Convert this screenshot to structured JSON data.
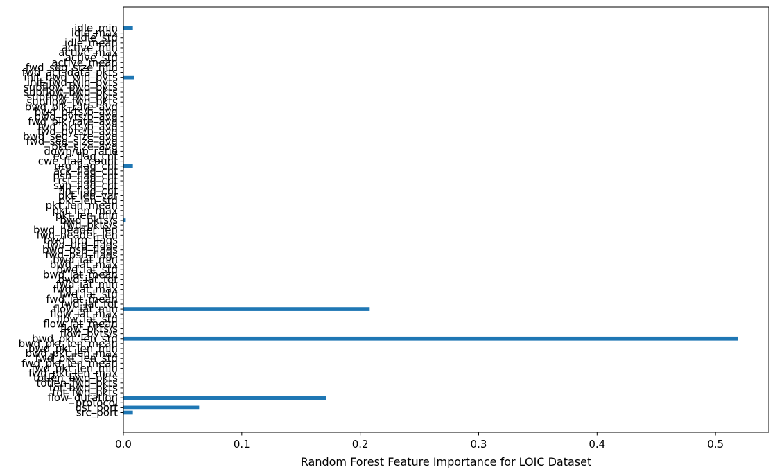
{
  "chart_data": {
    "type": "bar",
    "orientation": "horizontal",
    "xlabel": "Random Forest Feature Importance for LOIC Dataset",
    "ylabel": "",
    "xlim": [
      0,
      0.545
    ],
    "xticks": [
      0.0,
      0.1,
      0.2,
      0.3,
      0.4,
      0.5
    ],
    "xtick_labels": [
      "0.0",
      "0.1",
      "0.2",
      "0.3",
      "0.4",
      "0.5"
    ],
    "grid": false,
    "bar_color": "#1f77b4",
    "categories": [
      "src_port",
      "dst_port",
      "protocol",
      "flow_duration",
      "tot_fwd_pkts",
      "tot_bwd_pkts",
      "totlen_fwd_pkts",
      "totlen_bwd_pkts",
      "fwd_pkt_len_max",
      "fwd_pkt_len_min",
      "fwd_pkt_len_mean",
      "fwd_pkt_len_std",
      "bwd_pkt_len_max",
      "bwd_pkt_len_min",
      "bwd_pkt_len_mean",
      "bwd_pkt_len_std",
      "flow_byts/s",
      "flow_pkts/s",
      "flow_iat_mean",
      "flow_iat_std",
      "flow_iat_max",
      "flow_iat_min",
      "fwd_iat_tot",
      "fwd_iat_mean",
      "fwd_iat_std",
      "fwd_iat_max",
      "fwd_iat_min",
      "bwd_iat_tot",
      "bwd_iat_mean",
      "bwd_iat_std",
      "bwd_iat_max",
      "bwd_iat_min",
      "fwd_psh_flags",
      "bwd_psh_flags",
      "fwd_urg_flags",
      "bwd_urg_flags",
      "fwd_header_len",
      "bwd_header_len",
      "fwd_pkts/s",
      "bwd_pkts/s",
      "pkt_len_min",
      "pkt_len_max",
      "pkt_len_mean",
      "pkt_len_std",
      "pkt_len_var",
      "fin_flag_cnt",
      "syn_flag_cnt",
      "rst_flag_cnt",
      "psh_flag_cnt",
      "ack_flag_cnt",
      "urg_flag_cnt",
      "cwe_flag_count",
      "ece_flag_cnt",
      "down/up_ratio",
      "pkt_size_avg",
      "fwd_seg_size_avg",
      "bwd_seg_size_avg",
      "fwd_byts/b_avg",
      "fwd_pkts/b_avg",
      "fwd_blk_rate_avg",
      "bwd_byts/b_avg",
      "bwd_pkts/b_avg",
      "bwd_blk_rate_avg",
      "subflow_fwd_pkts",
      "subflow_fwd_byts",
      "subflow_bwd_pkts",
      "subflow_bwd_byts",
      "init_fwd_win_byts",
      "init_bwd_win_byts",
      "fwd_act_data_pkts",
      "fwd_seg_size_min",
      "active_mean",
      "active_std",
      "active_max",
      "active_min",
      "idle_mean",
      "idle_std",
      "idle_max",
      "idle_min"
    ],
    "values": [
      0.008,
      0.064,
      0.0,
      0.171,
      0.0,
      0.0,
      0.0,
      0.0,
      0.0,
      0.0,
      0.0,
      0.0,
      0.0,
      0.0,
      0.0,
      0.519,
      0.0,
      0.0,
      0.0,
      0.0,
      0.0,
      0.208,
      0.0,
      0.0,
      0.0,
      0.0,
      0.0,
      0.0,
      0.0,
      0.0,
      0.0,
      0.0,
      0.0,
      0.0,
      0.0,
      0.0,
      0.0,
      0.0,
      0.0,
      0.002,
      0.0,
      0.0,
      0.0,
      0.0,
      0.0,
      0.0,
      0.0,
      0.0,
      0.0,
      0.0,
      0.008,
      0.0,
      0.0,
      0.0,
      0.0,
      0.0,
      0.0,
      0.0,
      0.0,
      0.0,
      0.0,
      0.0,
      0.0,
      0.0,
      0.0,
      0.0,
      0.0,
      0.0,
      0.009,
      0.0,
      0.0,
      0.0,
      0.0,
      0.0,
      0.0,
      0.0,
      0.0,
      0.0,
      0.008
    ]
  }
}
